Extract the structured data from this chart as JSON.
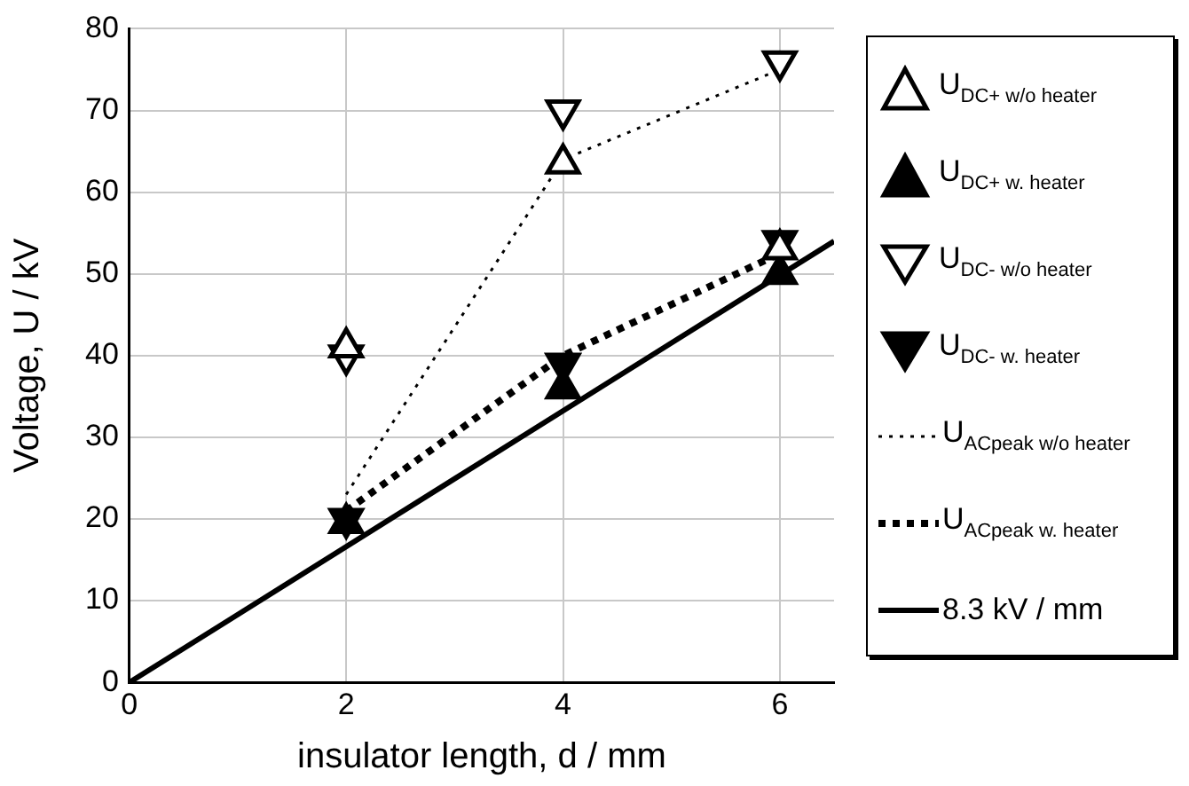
{
  "chart_data": {
    "type": "scatter",
    "xlabel": "insulator length, d / mm",
    "ylabel": "Voltage, U / kV",
    "xlim": [
      0,
      6.5
    ],
    "ylim": [
      0,
      80
    ],
    "xticks": [
      0,
      2,
      4,
      6
    ],
    "yticks": [
      0,
      10,
      20,
      30,
      40,
      50,
      60,
      70,
      80
    ],
    "grid": true,
    "legend": "right",
    "series": [
      {
        "name": "U$_{DC+ w/o heater}$",
        "marker": "triangle-open",
        "color": "#000000",
        "x": [
          2,
          4,
          6
        ],
        "values": [
          41,
          63.5,
          53
        ]
      },
      {
        "name": "U$_{DC+ w. heater}$",
        "marker": "triangle",
        "color": "#000000",
        "x": [
          2,
          4,
          6
        ],
        "values": [
          19.5,
          36,
          50
        ]
      },
      {
        "name": "U$_{DC- w/o heater}$",
        "marker": "triangle-down-open",
        "color": "#000000",
        "x": [
          2,
          4,
          6
        ],
        "values": [
          40,
          70,
          76
        ]
      },
      {
        "name": "U$_{DC- w. heater}$",
        "marker": "triangle-down",
        "color": "#000000",
        "x": [
          2,
          4,
          6
        ],
        "values": [
          20,
          39,
          54
        ]
      },
      {
        "name": "U$_{ACpeak w/o heater}$",
        "type": "line",
        "marker": "none",
        "line_style": "dotted",
        "color": "#000000",
        "x": [
          2,
          4,
          6
        ],
        "values": [
          23,
          64,
          75
        ]
      },
      {
        "name": "U$_{ACpeak w. heater}$",
        "type": "line",
        "marker": "none",
        "line_style": "dashed",
        "color": "#000000",
        "x": [
          2,
          4,
          6
        ],
        "values": [
          21,
          40,
          52.5
        ]
      },
      {
        "name": "8.3 kV / mm",
        "type": "line",
        "marker": "none",
        "line_style": "solid",
        "color": "#000000",
        "x": [
          0,
          6.5
        ],
        "values": [
          0,
          54
        ]
      }
    ]
  }
}
